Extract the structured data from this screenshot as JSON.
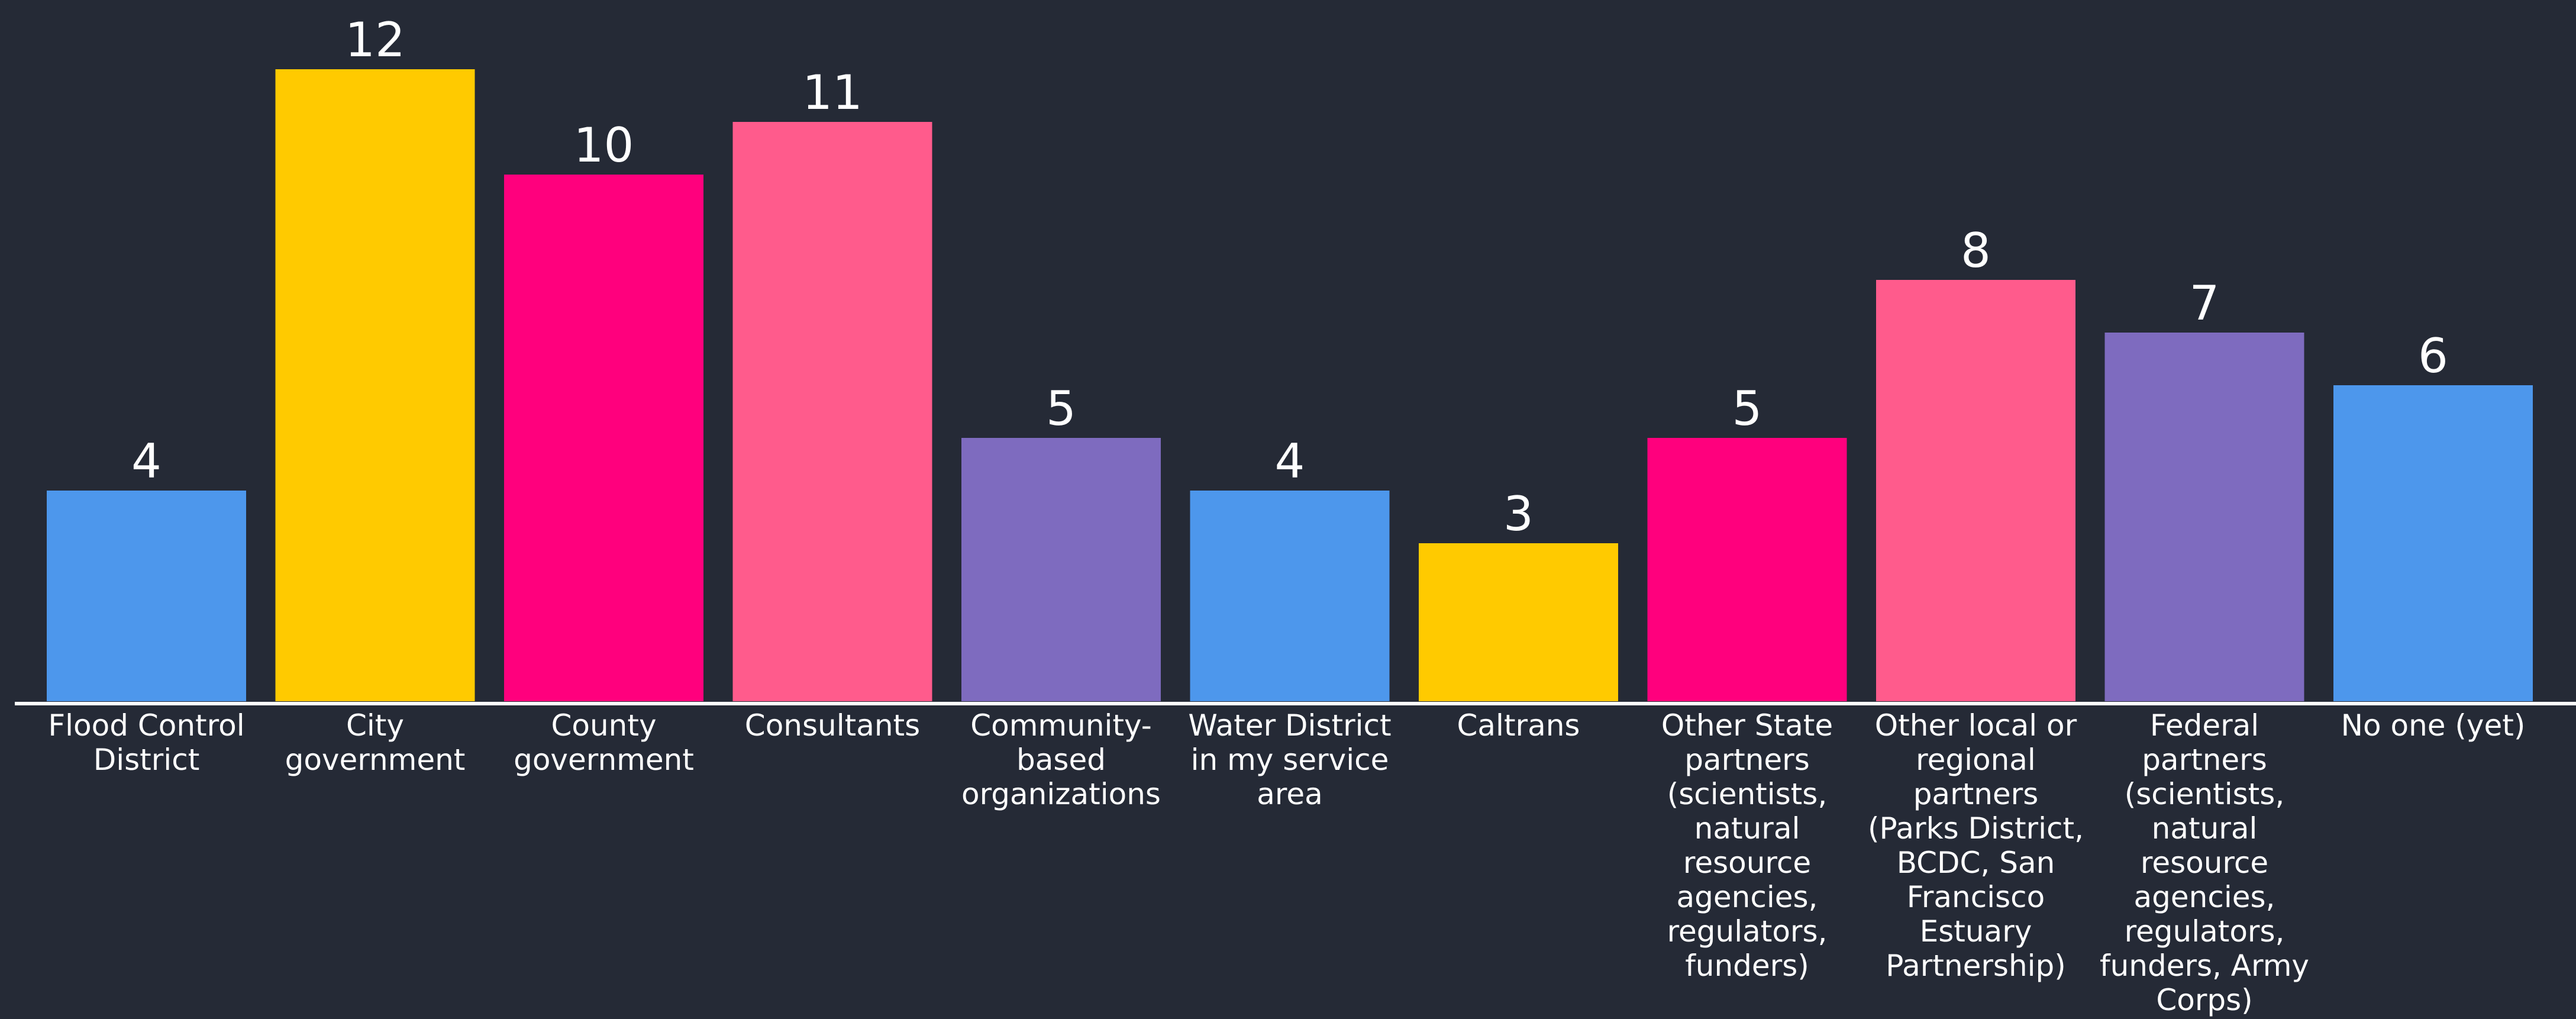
{
  "chart_data": {
    "type": "bar",
    "title": "",
    "xlabel": "",
    "ylabel": "",
    "ylim": [
      0,
      12
    ],
    "grid": false,
    "legend": "none",
    "background_color": "#252a36",
    "baseline_color": "#ffffff",
    "categories": [
      "Flood Control District",
      "City government",
      "County government",
      "Consultants",
      "Community-based organizations",
      "Water District in my service area",
      "Caltrans",
      "Other State partners (scientists, natural resource agencies, regulators, funders)",
      "Other local or regional partners (Parks District, BCDC, San Francisco Estuary Partnership)",
      "Federal partners (scientists, natural resource agencies, regulators, funders, Army Corps)",
      "No one (yet)"
    ],
    "category_label_lines": [
      [
        "Flood Control",
        "District"
      ],
      [
        "City",
        "government"
      ],
      [
        "County",
        "government"
      ],
      [
        "Consultants"
      ],
      [
        "Community-",
        "based",
        "organizations"
      ],
      [
        "Water District",
        "in my service",
        "area"
      ],
      [
        "Caltrans"
      ],
      [
        "Other State",
        "partners",
        "(scientists,",
        "natural",
        "resource",
        "agencies,",
        "regulators,",
        "funders)"
      ],
      [
        "Other local or",
        "regional",
        "partners",
        "(Parks District,",
        "BCDC, San",
        "Francisco",
        "Estuary",
        "Partnership)"
      ],
      [
        "Federal",
        "partners",
        "(scientists,",
        "natural",
        "resource",
        "agencies,",
        "regulators,",
        "funders, Army",
        "Corps)"
      ],
      [
        "No one (yet)"
      ]
    ],
    "values": [
      4,
      12,
      10,
      11,
      5,
      4,
      3,
      5,
      8,
      7,
      6
    ],
    "colors": [
      "#4d97ec",
      "#ffca00",
      "#ff007d",
      "#ff5b8c",
      "#7e6bbf",
      "#4d97ec",
      "#ffca00",
      "#ff007d",
      "#ff5b8c",
      "#7e6bbf",
      "#4d97ec"
    ]
  }
}
